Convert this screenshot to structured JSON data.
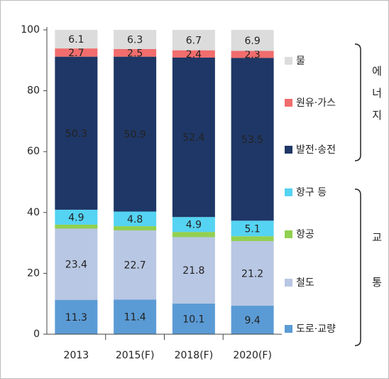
{
  "chart_data": {
    "type": "stacked_bar",
    "categories": [
      "2013",
      "2015(F)",
      "2018(F)",
      "2020(F)"
    ],
    "series": [
      {
        "name": "도로·교량",
        "color": "#5b9bd5",
        "label_color": "#ffffff",
        "values": [
          11.3,
          11.4,
          10.1,
          9.4
        ]
      },
      {
        "name": "철도",
        "color": "#b8c7e3",
        "label_color": "#222222",
        "values": [
          23.4,
          22.7,
          21.8,
          21.2
        ]
      },
      {
        "name": "항공",
        "color": "#92d050",
        "values": [
          1.3,
          1.4,
          1.7,
          1.6
        ]
      },
      {
        "name": "항구 등",
        "color": "#55d3f2",
        "label_color": "#222222",
        "values": [
          4.9,
          4.8,
          4.9,
          5.1
        ]
      },
      {
        "name": "발전·송전",
        "color": "#1f3766",
        "label_color": "#ffffff",
        "values": [
          50.3,
          50.9,
          52.4,
          53.5
        ]
      },
      {
        "name": "원유·가스",
        "color": "#f26d6d",
        "label_color": "#222222",
        "values": [
          2.7,
          2.5,
          2.4,
          2.3
        ]
      },
      {
        "name": "물",
        "color": "#dcdcdc",
        "label_color": "#222222",
        "values": [
          6.1,
          6.3,
          6.7,
          6.9
        ]
      }
    ],
    "groups": [
      {
        "label": "에너지"
      },
      {
        "label": "교통"
      }
    ],
    "ylim": [
      0,
      100
    ],
    "yticks": [
      0,
      20,
      40,
      60,
      80,
      100
    ],
    "grid": false
  }
}
